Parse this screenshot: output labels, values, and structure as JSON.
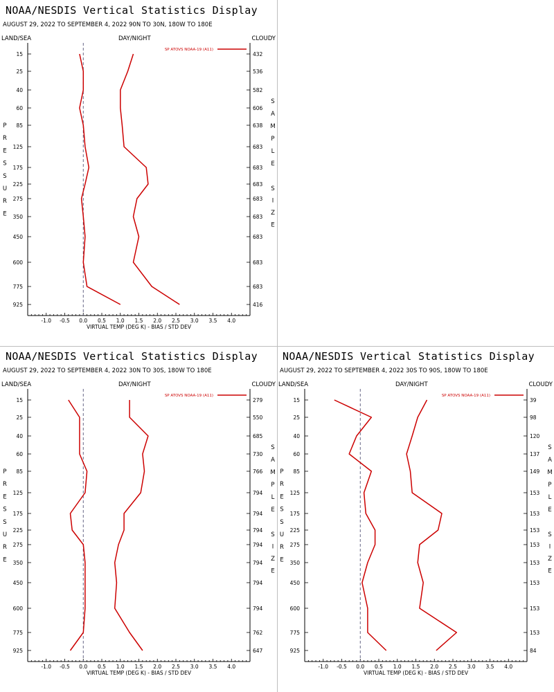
{
  "header": {
    "title": "NOAA/NESDIS Vertical Statistics Display",
    "left_label": "LAND/SEA",
    "mid_label": "DAY/NIGHT",
    "right_label": "CLOUDY",
    "xlabel": "VIRTUAL TEMP (DEG K) - BIAS / STD DEV",
    "pressure_letters": [
      "P",
      "R",
      "E",
      "S",
      "S",
      "U",
      "R",
      "E"
    ],
    "sample_letters": [
      "S",
      "A",
      "M",
      "P",
      "L",
      "E"
    ],
    "size_letters": [
      "S",
      "I",
      "Z",
      "E"
    ]
  },
  "colors": {
    "series": "#cc0000",
    "axis": "#000000",
    "zero_line": "#555577"
  },
  "chart_data": [
    {
      "type": "line",
      "subtitle": "AUGUST 29, 2022 TO SEPTEMBER 4, 2022 90N TO 30N, 180W TO 180E",
      "legend": "SP ATOVS NOAA-19 (A11)",
      "xlabel": "VIRTUAL TEMP (DEG K) - BIAS / STD DEV",
      "xlim": [
        -1.5,
        4.5
      ],
      "xticks": [
        "-1.0",
        "-0.5",
        "0.0",
        "0.5",
        "1.0",
        "1.5",
        "2.0",
        "2.5",
        "3.0",
        "3.5",
        "4.0"
      ],
      "pressure_levels": [
        "15",
        "25",
        "40",
        "60",
        "85",
        "125",
        "175",
        "225",
        "275",
        "350",
        "450",
        "600",
        "775",
        "925"
      ],
      "sample_size": [
        "432",
        "536",
        "582",
        "606",
        "638",
        "683",
        "683",
        "683",
        "683",
        "683",
        "683",
        "683",
        "683",
        "416"
      ],
      "series": [
        {
          "name": "bias",
          "values": [
            -0.1,
            0.0,
            0.0,
            -0.1,
            0.0,
            0.05,
            0.15,
            0.05,
            -0.05,
            0.0,
            0.05,
            0.0,
            0.1,
            1.0
          ]
        },
        {
          "name": "std dev",
          "values": [
            1.35,
            1.2,
            1.0,
            1.0,
            1.05,
            1.1,
            1.7,
            1.75,
            1.45,
            1.35,
            1.5,
            1.35,
            1.85,
            2.6
          ]
        }
      ]
    },
    {
      "type": "line",
      "subtitle": "AUGUST 29, 2022 TO SEPTEMBER 4, 2022 30N TO 30S, 180W TO 180E",
      "legend": "SP ATOVS NOAA-19 (A11)",
      "xlabel": "VIRTUAL TEMP (DEG K) - BIAS / STD DEV",
      "xlim": [
        -1.5,
        4.5
      ],
      "xticks": [
        "-1.0",
        "-0.5",
        "0.0",
        "0.5",
        "1.0",
        "1.5",
        "2.0",
        "2.5",
        "3.0",
        "3.5",
        "4.0"
      ],
      "pressure_levels": [
        "15",
        "25",
        "40",
        "60",
        "85",
        "125",
        "175",
        "225",
        "275",
        "350",
        "450",
        "600",
        "775",
        "925"
      ],
      "sample_size": [
        "279",
        "550",
        "685",
        "730",
        "766",
        "794",
        "794",
        "794",
        "794",
        "794",
        "794",
        "794",
        "762",
        "647"
      ],
      "series": [
        {
          "name": "bias",
          "values": [
            -0.4,
            -0.1,
            -0.1,
            -0.1,
            0.1,
            0.05,
            -0.35,
            -0.3,
            0.0,
            0.05,
            0.05,
            0.05,
            0.0,
            -0.35
          ]
        },
        {
          "name": "std dev",
          "values": [
            1.25,
            1.25,
            1.75,
            1.6,
            1.65,
            1.55,
            1.1,
            1.1,
            0.95,
            0.85,
            0.9,
            0.85,
            1.25,
            1.6
          ]
        }
      ]
    },
    {
      "type": "line",
      "subtitle": "AUGUST 29, 2022 TO SEPTEMBER 4, 2022 30S TO 90S, 180W TO 180E",
      "legend": "SP ATOVS NOAA-19 (A11)",
      "xlabel": "VIRTUAL TEMP (DEG K) - BIAS / STD DEV",
      "xlim": [
        -1.5,
        4.5
      ],
      "xticks": [
        "-1.0",
        "-0.5",
        "0.0",
        "0.5",
        "1.0",
        "1.5",
        "2.0",
        "2.5",
        "3.0",
        "3.5",
        "4.0"
      ],
      "pressure_levels": [
        "15",
        "25",
        "40",
        "60",
        "85",
        "125",
        "175",
        "225",
        "275",
        "350",
        "450",
        "600",
        "775",
        "925"
      ],
      "sample_size": [
        "39",
        "98",
        "120",
        "137",
        "149",
        "153",
        "153",
        "153",
        "153",
        "153",
        "153",
        "153",
        "153",
        "84"
      ],
      "series": [
        {
          "name": "bias",
          "values": [
            -0.7,
            0.3,
            -0.1,
            -0.3,
            0.3,
            0.1,
            0.15,
            0.4,
            0.4,
            0.2,
            0.05,
            0.2,
            0.2,
            0.7
          ]
        },
        {
          "name": "std dev",
          "values": [
            1.8,
            1.55,
            1.4,
            1.25,
            1.35,
            1.4,
            2.2,
            2.1,
            1.6,
            1.55,
            1.7,
            1.6,
            2.6,
            2.05
          ]
        }
      ]
    }
  ]
}
